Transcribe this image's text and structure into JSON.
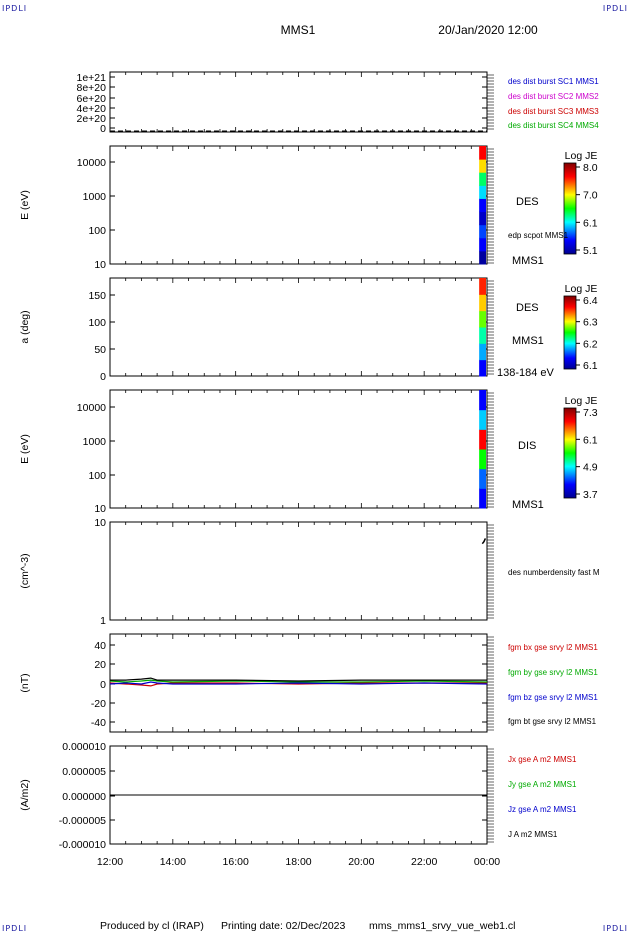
{
  "header": {
    "corner_label": "IPDLI",
    "title": "MMS1",
    "datetime": "20/Jan/2020 12:00"
  },
  "footer": {
    "produced_by": "Produced by cl (IRAP)",
    "printing_date": "Printing date: 02/Dec/2023",
    "filename": "mms_mms1_srvy_vue_web1.cl"
  },
  "x_axis": {
    "ticks": [
      "12:00",
      "14:00",
      "16:00",
      "18:00",
      "20:00",
      "22:00",
      "00:00"
    ],
    "range_hours": [
      12,
      24
    ]
  },
  "colors": {
    "blue": "#0000cc",
    "magenta": "#cc00cc",
    "red": "#cc0000",
    "green": "#00aa00",
    "black": "#000000"
  },
  "chart_data": [
    {
      "type": "line",
      "ticks": [
        "1e+21",
        "8e+20",
        "6e+20",
        "4e+20",
        "2e+20",
        "0"
      ],
      "ylim": [
        0,
        1e+21
      ],
      "legend": [
        {
          "text": "des dist burst SC1 MMS1",
          "color": "#0000cc"
        },
        {
          "text": "des dist burst SC2 MMS2",
          "color": "#cc00cc"
        },
        {
          "text": "des dist burst SC3 MMS3",
          "color": "#cc0000"
        },
        {
          "text": "des dist burst SC4 MMS4",
          "color": "#00aa00"
        }
      ],
      "reference_line": 0
    },
    {
      "type": "heatmap",
      "ylabel": "E (eV)",
      "ticks": [
        "10000",
        "1000",
        "100",
        "10"
      ],
      "ylim": [
        10,
        30000
      ],
      "yscale": "log",
      "labels": [
        "DES",
        "edp scpot MMS1",
        "MMS1"
      ],
      "colorbar": {
        "title": "Log JE",
        "ticks": [
          "8.0",
          "7.0",
          "6.1",
          "5.1"
        ]
      },
      "data_start_hour": 23.75
    },
    {
      "type": "heatmap",
      "ylabel": "a (deg)",
      "ticks": [
        "150",
        "100",
        "50",
        "0"
      ],
      "ylim": [
        0,
        180
      ],
      "labels": [
        "DES",
        "MMS1",
        "138-184 eV"
      ],
      "colorbar": {
        "title": "Log JE",
        "ticks": [
          "6.4",
          "6.3",
          "6.2",
          "6.1"
        ]
      },
      "data_start_hour": 23.75
    },
    {
      "type": "heatmap",
      "ylabel": "E (eV)",
      "ticks": [
        "10000",
        "1000",
        "100",
        "10"
      ],
      "ylim": [
        10,
        30000
      ],
      "yscale": "log",
      "labels": [
        "DIS",
        "MMS1"
      ],
      "colorbar": {
        "title": "Log JE",
        "ticks": [
          "7.3",
          "6.1",
          "4.9",
          "3.7"
        ]
      },
      "data_start_hour": 23.75
    },
    {
      "type": "line",
      "ylabel": "(cm^-3)",
      "ticks": [
        "10",
        "1"
      ],
      "ylim": [
        1,
        10
      ],
      "yscale": "log",
      "legend": [
        {
          "text": "des numberdensity fast M",
          "color": "#000000"
        }
      ],
      "x": [
        23.85,
        23.9,
        23.95
      ],
      "y": [
        6.0,
        6.3,
        6.8
      ]
    },
    {
      "type": "line",
      "ylabel": "(nT)",
      "ticks": [
        "40",
        "20",
        "0",
        "-20",
        "-40"
      ],
      "ylim": [
        -50,
        50
      ],
      "legend": [
        {
          "text": "fgm bx gse srvy l2 MMS1",
          "color": "#cc0000"
        },
        {
          "text": "fgm by gse srvy l2 MMS1",
          "color": "#00aa00"
        },
        {
          "text": "fgm bz gse srvy l2 MMS1",
          "color": "#0000cc"
        },
        {
          "text": "fgm bt gse srvy l2 MMS1",
          "color": "#000000"
        }
      ],
      "series": [
        {
          "color": "#cc0000",
          "x": [
            12,
            12.5,
            13,
            13.3,
            13.5,
            14,
            16,
            18,
            20,
            22,
            24
          ],
          "y": [
            0,
            -1,
            -2,
            -3,
            -1,
            0,
            0,
            -1,
            0,
            0,
            0
          ]
        },
        {
          "color": "#00aa00",
          "x": [
            12,
            12.5,
            13,
            13.3,
            13.5,
            14,
            16,
            18,
            20,
            22,
            24
          ],
          "y": [
            2,
            1,
            2,
            3,
            2,
            1,
            2,
            1,
            1,
            2,
            1
          ]
        },
        {
          "color": "#0000cc",
          "x": [
            12,
            12.5,
            13,
            13.3,
            13.5,
            14,
            16,
            18,
            20,
            22,
            24
          ],
          "y": [
            -1,
            0,
            -1,
            1,
            0,
            -1,
            -1,
            0,
            -1,
            0,
            -1
          ]
        },
        {
          "color": "#000000",
          "x": [
            12,
            12.5,
            13,
            13.3,
            13.5,
            14,
            16,
            18,
            20,
            22,
            24
          ],
          "y": [
            3,
            3,
            4,
            5,
            3,
            3,
            3,
            2,
            3,
            3,
            3
          ]
        }
      ]
    },
    {
      "type": "line",
      "ylabel": "(A/m2)",
      "ticks": [
        "0.000010",
        "0.000005",
        "0.000000",
        "-0.000005",
        "-0.000010"
      ],
      "ylim": [
        -1e-05,
        1e-05
      ],
      "legend": [
        {
          "text": "Jx gse A m2 MMS1",
          "color": "#cc0000"
        },
        {
          "text": "Jy gse A m2 MMS1",
          "color": "#00aa00"
        },
        {
          "text": "Jz gse A m2 MMS1",
          "color": "#0000cc"
        },
        {
          "text": "J A m2 MMS1",
          "color": "#000000"
        }
      ],
      "reference_line": 0
    }
  ]
}
